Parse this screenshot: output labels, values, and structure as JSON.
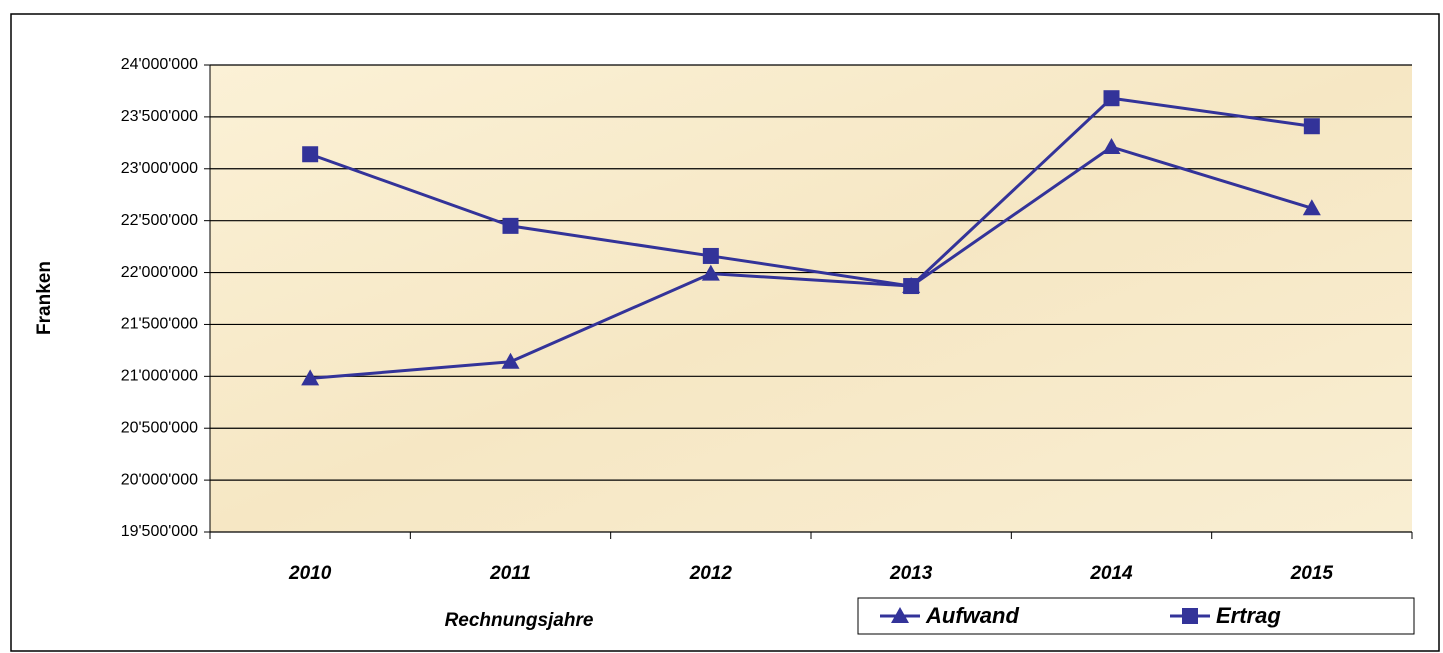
{
  "chart_data": {
    "type": "line",
    "x_label": "Rechnungsjahre",
    "y_label": "Franken",
    "categories": [
      "2010",
      "2011",
      "2012",
      "2013",
      "2014",
      "2015"
    ],
    "series": [
      {
        "name": "Aufwand",
        "color": "#333399",
        "marker": "triangle",
        "values": [
          20980000,
          21140000,
          21990000,
          21870000,
          23210000,
          22620000
        ]
      },
      {
        "name": "Ertrag",
        "color": "#333399",
        "marker": "square",
        "values": [
          23140000,
          22450000,
          22160000,
          21870000,
          23680000,
          23410000
        ]
      }
    ],
    "ylim": [
      19500000,
      24000000
    ],
    "yticks": [
      {
        "value": 19500000,
        "label": "19'500'000"
      },
      {
        "value": 20000000,
        "label": "20'000'000"
      },
      {
        "value": 20500000,
        "label": "20'500'000"
      },
      {
        "value": 21000000,
        "label": "21'000'000"
      },
      {
        "value": 21500000,
        "label": "21'500'000"
      },
      {
        "value": 22000000,
        "label": "22'000'000"
      },
      {
        "value": 22500000,
        "label": "22'500'000"
      },
      {
        "value": 23000000,
        "label": "23'000'000"
      },
      {
        "value": 23500000,
        "label": "23'500'000"
      },
      {
        "value": 24000000,
        "label": "24'000'000"
      }
    ],
    "grid": true,
    "legend": "bottom-right"
  }
}
